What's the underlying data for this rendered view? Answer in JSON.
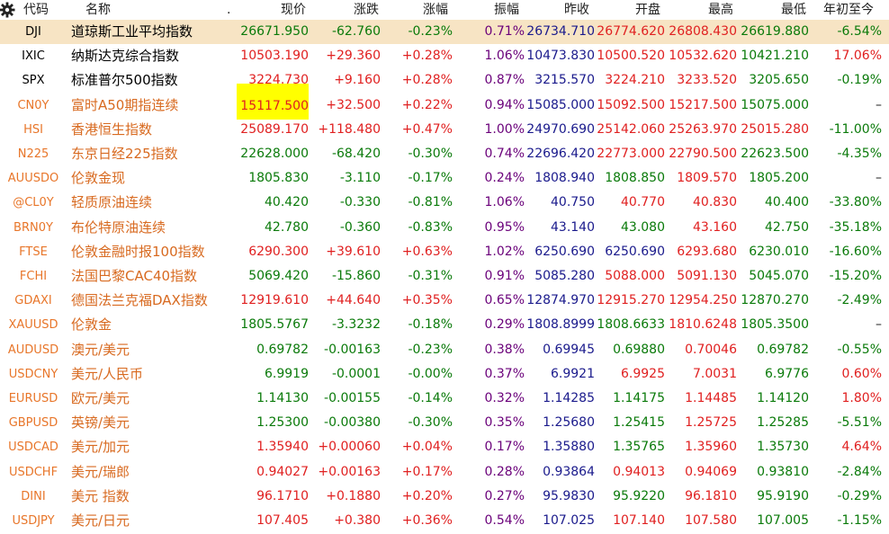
{
  "colors": {
    "up": "#e02020",
    "down": "#0a7a0a",
    "neutral": "#1a1a8c",
    "code_orange": "#e8762a",
    "name_orange": "#d86a20",
    "amp": "#6a007a"
  },
  "header": {
    "settings_icon": "gear-icon",
    "code": "代码",
    "name": "名称",
    "sort_marker": ".",
    "price": "现价",
    "change": "涨跌",
    "change_pct": "涨幅",
    "amplitude": "振幅",
    "prev_close": "昨收",
    "open": "开盘",
    "high": "最高",
    "low": "最低",
    "ytd": "年初至今"
  },
  "rows": [
    {
      "code": "DJI",
      "name": "道琼斯工业平均指数",
      "price": "26671.950",
      "change": "-62.760",
      "pct": "-0.23%",
      "amp": "0.71%",
      "prev": "26734.710",
      "open": "26774.620",
      "high": "26808.430",
      "low": "26619.880",
      "ytd": "-6.54%",
      "dir": "down",
      "open_dir": "up",
      "high_dir": "up",
      "low_dir": "down",
      "ytd_dir": "down",
      "code_style": "dark",
      "name_style": "dark",
      "selected": true
    },
    {
      "code": "IXIC",
      "name": "纳斯达克综合指数",
      "price": "10503.190",
      "change": "+29.360",
      "pct": "+0.28%",
      "amp": "1.06%",
      "prev": "10473.830",
      "open": "10500.520",
      "high": "10532.620",
      "low": "10421.210",
      "ytd": "17.06%",
      "dir": "up",
      "open_dir": "up",
      "high_dir": "up",
      "low_dir": "down",
      "ytd_dir": "up",
      "code_style": "dark",
      "name_style": "dark"
    },
    {
      "code": "SPX",
      "name": "标准普尔500指数",
      "price": "3224.730",
      "change": "+9.160",
      "pct": "+0.28%",
      "amp": "0.87%",
      "prev": "3215.570",
      "open": "3224.210",
      "high": "3233.520",
      "low": "3205.650",
      "ytd": "-0.19%",
      "dir": "up",
      "open_dir": "up",
      "high_dir": "up",
      "low_dir": "down",
      "ytd_dir": "down",
      "code_style": "dark",
      "name_style": "dark"
    },
    {
      "code": "CN0Y",
      "name": "富时A50期指连续",
      "price": "15117.500",
      "change": "+32.500",
      "pct": "+0.22%",
      "amp": "0.94%",
      "prev": "15085.000",
      "open": "15092.500",
      "high": "15217.500",
      "low": "15075.000",
      "ytd": "–",
      "dir": "up",
      "open_dir": "up",
      "high_dir": "up",
      "low_dir": "down",
      "ytd_dir": "neutral",
      "code_style": "orange",
      "name_style": "orange",
      "highlight": true
    },
    {
      "code": "HSI",
      "name": "香港恒生指数",
      "price": "25089.170",
      "change": "+118.480",
      "pct": "+0.47%",
      "amp": "1.00%",
      "prev": "24970.690",
      "open": "25142.060",
      "high": "25263.970",
      "low": "25015.280",
      "ytd": "-11.00%",
      "dir": "up",
      "open_dir": "up",
      "high_dir": "up",
      "low_dir": "up",
      "ytd_dir": "down",
      "code_style": "orange",
      "name_style": "orange"
    },
    {
      "code": "N225",
      "name": "东京日经225指数",
      "price": "22628.000",
      "change": "-68.420",
      "pct": "-0.30%",
      "amp": "0.74%",
      "prev": "22696.420",
      "open": "22773.000",
      "high": "22790.500",
      "low": "22623.500",
      "ytd": "-4.35%",
      "dir": "down",
      "open_dir": "up",
      "high_dir": "up",
      "low_dir": "down",
      "ytd_dir": "down",
      "code_style": "orange",
      "name_style": "orange"
    },
    {
      "code": "AUUSDO",
      "name": "伦敦金现",
      "price": "1805.830",
      "change": "-3.110",
      "pct": "-0.17%",
      "amp": "0.24%",
      "prev": "1808.940",
      "open": "1808.850",
      "high": "1809.570",
      "low": "1805.200",
      "ytd": "–",
      "dir": "down",
      "open_dir": "down",
      "high_dir": "up",
      "low_dir": "down",
      "ytd_dir": "neutral",
      "code_style": "orange",
      "name_style": "orange"
    },
    {
      "code": "@CL0Y",
      "name": "轻质原油连续",
      "price": "40.420",
      "change": "-0.330",
      "pct": "-0.81%",
      "amp": "1.06%",
      "prev": "40.750",
      "open": "40.770",
      "high": "40.830",
      "low": "40.400",
      "ytd": "-33.80%",
      "dir": "down",
      "open_dir": "up",
      "high_dir": "up",
      "low_dir": "down",
      "ytd_dir": "down",
      "code_style": "orange",
      "name_style": "orange"
    },
    {
      "code": "BRN0Y",
      "name": "布伦特原油连续",
      "price": "42.780",
      "change": "-0.360",
      "pct": "-0.83%",
      "amp": "0.95%",
      "prev": "43.140",
      "open": "43.080",
      "high": "43.160",
      "low": "42.750",
      "ytd": "-35.18%",
      "dir": "down",
      "open_dir": "down",
      "high_dir": "up",
      "low_dir": "down",
      "ytd_dir": "down",
      "code_style": "orange",
      "name_style": "orange"
    },
    {
      "code": "FTSE",
      "name": "伦敦金融时报100指数",
      "price": "6290.300",
      "change": "+39.610",
      "pct": "+0.63%",
      "amp": "1.02%",
      "prev": "6250.690",
      "open": "6250.690",
      "high": "6293.680",
      "low": "6230.010",
      "ytd": "-16.60%",
      "dir": "up",
      "open_dir": "neutral",
      "high_dir": "up",
      "low_dir": "down",
      "ytd_dir": "down",
      "code_style": "orange",
      "name_style": "orange"
    },
    {
      "code": "FCHI",
      "name": "法国巴黎CAC40指数",
      "price": "5069.420",
      "change": "-15.860",
      "pct": "-0.31%",
      "amp": "0.91%",
      "prev": "5085.280",
      "open": "5088.000",
      "high": "5091.130",
      "low": "5045.070",
      "ytd": "-15.20%",
      "dir": "down",
      "open_dir": "up",
      "high_dir": "up",
      "low_dir": "down",
      "ytd_dir": "down",
      "code_style": "orange",
      "name_style": "orange"
    },
    {
      "code": "GDAXI",
      "name": "德国法兰克福DAX指数",
      "price": "12919.610",
      "change": "+44.640",
      "pct": "+0.35%",
      "amp": "0.65%",
      "prev": "12874.970",
      "open": "12915.270",
      "high": "12954.250",
      "low": "12870.270",
      "ytd": "-2.49%",
      "dir": "up",
      "open_dir": "up",
      "high_dir": "up",
      "low_dir": "down",
      "ytd_dir": "down",
      "code_style": "orange",
      "name_style": "orange"
    },
    {
      "code": "XAUUSD",
      "name": "伦敦金",
      "price": "1805.5767",
      "change": "-3.3232",
      "pct": "-0.18%",
      "amp": "0.29%",
      "prev": "1808.8999",
      "open": "1808.6633",
      "high": "1810.6248",
      "low": "1805.3500",
      "ytd": "–",
      "dir": "down",
      "open_dir": "down",
      "high_dir": "up",
      "low_dir": "down",
      "ytd_dir": "neutral",
      "code_style": "orange",
      "name_style": "orange"
    },
    {
      "code": "AUDUSD",
      "name": "澳元/美元",
      "price": "0.69782",
      "change": "-0.00163",
      "pct": "-0.23%",
      "amp": "0.38%",
      "prev": "0.69945",
      "open": "0.69880",
      "high": "0.70046",
      "low": "0.69782",
      "ytd": "-0.55%",
      "dir": "down",
      "open_dir": "down",
      "high_dir": "up",
      "low_dir": "down",
      "ytd_dir": "down",
      "code_style": "orange",
      "name_style": "orange"
    },
    {
      "code": "USDCNY",
      "name": "美元/人民币",
      "price": "6.9919",
      "change": "-0.0001",
      "pct": "-0.00%",
      "amp": "0.37%",
      "prev": "6.9921",
      "open": "6.9925",
      "high": "7.0031",
      "low": "6.9776",
      "ytd": "0.60%",
      "dir": "down",
      "open_dir": "up",
      "high_dir": "up",
      "low_dir": "down",
      "ytd_dir": "up",
      "code_style": "orange",
      "name_style": "orange"
    },
    {
      "code": "EURUSD",
      "name": "欧元/美元",
      "price": "1.14130",
      "change": "-0.00155",
      "pct": "-0.14%",
      "amp": "0.32%",
      "prev": "1.14285",
      "open": "1.14175",
      "high": "1.14485",
      "low": "1.14120",
      "ytd": "1.80%",
      "dir": "down",
      "open_dir": "down",
      "high_dir": "up",
      "low_dir": "down",
      "ytd_dir": "up",
      "code_style": "orange",
      "name_style": "orange"
    },
    {
      "code": "GBPUSD",
      "name": "英镑/美元",
      "price": "1.25300",
      "change": "-0.00380",
      "pct": "-0.30%",
      "amp": "0.35%",
      "prev": "1.25680",
      "open": "1.25415",
      "high": "1.25725",
      "low": "1.25285",
      "ytd": "-5.51%",
      "dir": "down",
      "open_dir": "down",
      "high_dir": "up",
      "low_dir": "down",
      "ytd_dir": "down",
      "code_style": "orange",
      "name_style": "orange"
    },
    {
      "code": "USDCAD",
      "name": "美元/加元",
      "price": "1.35940",
      "change": "+0.00060",
      "pct": "+0.04%",
      "amp": "0.17%",
      "prev": "1.35880",
      "open": "1.35765",
      "high": "1.35960",
      "low": "1.35730",
      "ytd": "4.64%",
      "dir": "up",
      "open_dir": "down",
      "high_dir": "up",
      "low_dir": "down",
      "ytd_dir": "up",
      "code_style": "orange",
      "name_style": "orange"
    },
    {
      "code": "USDCHF",
      "name": "美元/瑞郎",
      "price": "0.94027",
      "change": "+0.00163",
      "pct": "+0.17%",
      "amp": "0.28%",
      "prev": "0.93864",
      "open": "0.94013",
      "high": "0.94069",
      "low": "0.93810",
      "ytd": "-2.84%",
      "dir": "up",
      "open_dir": "up",
      "high_dir": "up",
      "low_dir": "down",
      "ytd_dir": "down",
      "code_style": "orange",
      "name_style": "orange"
    },
    {
      "code": "DINI",
      "name": "美元 指数",
      "price": "96.1710",
      "change": "+0.1880",
      "pct": "+0.20%",
      "amp": "0.27%",
      "prev": "95.9830",
      "open": "95.9220",
      "high": "96.1810",
      "low": "95.9190",
      "ytd": "-0.29%",
      "dir": "up",
      "open_dir": "down",
      "high_dir": "up",
      "low_dir": "down",
      "ytd_dir": "down",
      "code_style": "orange",
      "name_style": "orange"
    },
    {
      "code": "USDJPY",
      "name": "美元/日元",
      "price": "107.405",
      "change": "+0.380",
      "pct": "+0.36%",
      "amp": "0.54%",
      "prev": "107.025",
      "open": "107.140",
      "high": "107.580",
      "low": "107.005",
      "ytd": "-1.15%",
      "dir": "up",
      "open_dir": "up",
      "high_dir": "up",
      "low_dir": "down",
      "ytd_dir": "down",
      "code_style": "orange",
      "name_style": "orange"
    }
  ]
}
